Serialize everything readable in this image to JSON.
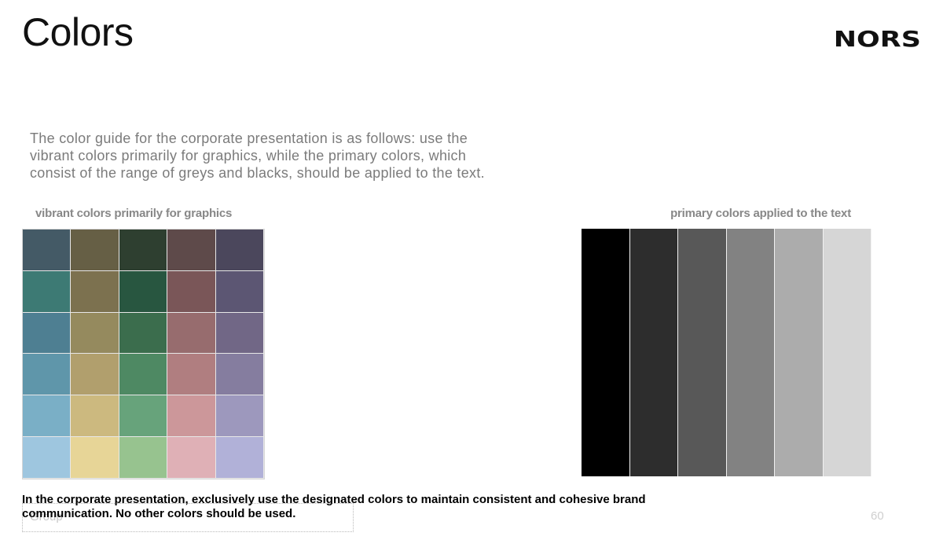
{
  "slide": {
    "title": "Colors",
    "logo": "NORS",
    "intro": "The color guide for the corporate presentation is as follows: use the vibrant colors primarily for graphics, while the primary colors, which consist of the range of greys and blacks, should be applied to the text.",
    "vibrant_label": "vibrant colors primarily for graphics",
    "primary_label": "primary colors applied to the text",
    "footer_note": "In the corporate presentation, exclusively use the designated colors to maintain consistent and cohesive brand communication. No other colors should be used.",
    "text_placeholder": "Group",
    "page_number": "60"
  },
  "vibrant_colors": [
    [
      "#445a66",
      "#665f45",
      "#2e3f30",
      "#5e4a4a",
      "#4b475c"
    ],
    [
      "#3d7a74",
      "#7c714f",
      "#285640",
      "#7a5658",
      "#5c5673"
    ],
    [
      "#4e7f92",
      "#958a5e",
      "#3b6d4d",
      "#976c6e",
      "#716786"
    ],
    [
      "#5f96aa",
      "#b19f6d",
      "#4e8963",
      "#b07e80",
      "#857d9f"
    ],
    [
      "#7aafc6",
      "#ccb97f",
      "#67a37b",
      "#cc979a",
      "#9d98bd"
    ],
    [
      "#9ec6df",
      "#e7d597",
      "#97c38f",
      "#dfb0b6",
      "#b1b1d8"
    ]
  ],
  "primary_colors": [
    "#000000",
    "#2d2d2d",
    "#585858",
    "#828282",
    "#acacac",
    "#d6d6d6"
  ]
}
